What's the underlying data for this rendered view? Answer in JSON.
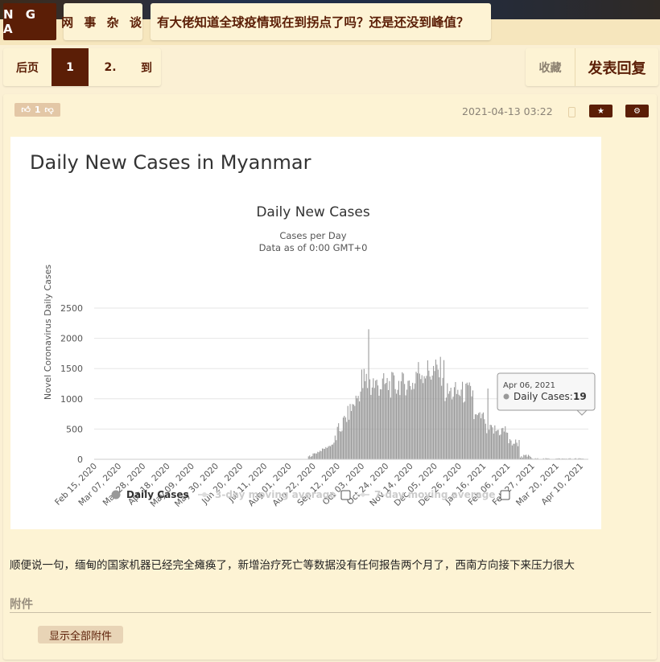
{
  "header": {
    "logo": "N G A",
    "forum": "网 事 杂 谈",
    "topic": "有大佬知道全球疫情现在到拐点了吗？还是还没到峰值？"
  },
  "pager": {
    "prev": "后页",
    "current": "1",
    "next": "2.",
    "goto": "到"
  },
  "actions": {
    "favorite": "收藏",
    "reply": "发表回复"
  },
  "post": {
    "vote_count": "1",
    "time": "2021-04-13 03:22",
    "text": "顺便说一句，缅甸的国家机器已经完全瘫痪了，新增治疗死亡等数据没有任何报告两个月了，西南方向接下来压力很大",
    "attachments_title": "附件",
    "show_all_attachments": "显示全部附件"
  },
  "chart_data": {
    "type": "bar",
    "page_heading": "Daily New Cases in Myanmar",
    "title": "Daily New Cases",
    "subtitle_1": "Cases per Day",
    "subtitle_2": "Data as of 0:00 GMT+0",
    "ylabel": "Novel Coronavirus Daily Cases",
    "ylim": [
      0,
      2500
    ],
    "yticks": [
      "0",
      "500",
      "1000",
      "1500",
      "2000",
      "2500"
    ],
    "xticks": [
      "Feb 15, 2020",
      "Mar 07, 2020",
      "Mar 28, 2020",
      "Apr 18, 2020",
      "May 09, 2020",
      "May 30, 2020",
      "Jun 20, 2020",
      "Jul 11, 2020",
      "Aug 01, 2020",
      "Aug 22, 2020",
      "Sep 12, 2020",
      "Oct 03, 2020",
      "Oct 24, 2020",
      "Nov 14, 2020",
      "Dec 05, 2020",
      "Dec 26, 2020",
      "Jan 16, 2021",
      "Feb 06, 2021",
      "Feb 27, 2021",
      "Mar 20, 2021",
      "Apr 10, 2021"
    ],
    "series_name": "Daily Cases",
    "monthly_profile": [
      {
        "period": "Feb-Aug 2020",
        "approx_daily": 0
      },
      {
        "period": "early Sep 2020",
        "approx_daily": 80
      },
      {
        "period": "late Sep 2020",
        "approx_daily": 400
      },
      {
        "period": "early Oct 2020",
        "approx_daily": 1000
      },
      {
        "period": "peak ~Oct 06 2020",
        "approx_daily": 2150
      },
      {
        "period": "late Oct 2020",
        "approx_daily": 1300
      },
      {
        "period": "Nov 2020",
        "approx_daily": 1250
      },
      {
        "period": "early Dec 2020",
        "approx_daily": 1450
      },
      {
        "period": "late Dec 2020",
        "approx_daily": 1000
      },
      {
        "period": "Jan 2021",
        "approx_daily": 600
      },
      {
        "period": "Feb-Apr 2021",
        "approx_daily": 20
      }
    ],
    "legend": [
      {
        "name": "Daily Cases",
        "active": true
      },
      {
        "name": "3-day moving average",
        "active": false
      },
      {
        "name": "7-day moving average",
        "active": false
      }
    ],
    "tooltip": {
      "date": "Apr 06, 2021",
      "label": "Daily Cases:",
      "value": "19"
    },
    "colors": {
      "bars": "#999999",
      "grid": "#e6e6e6"
    }
  }
}
